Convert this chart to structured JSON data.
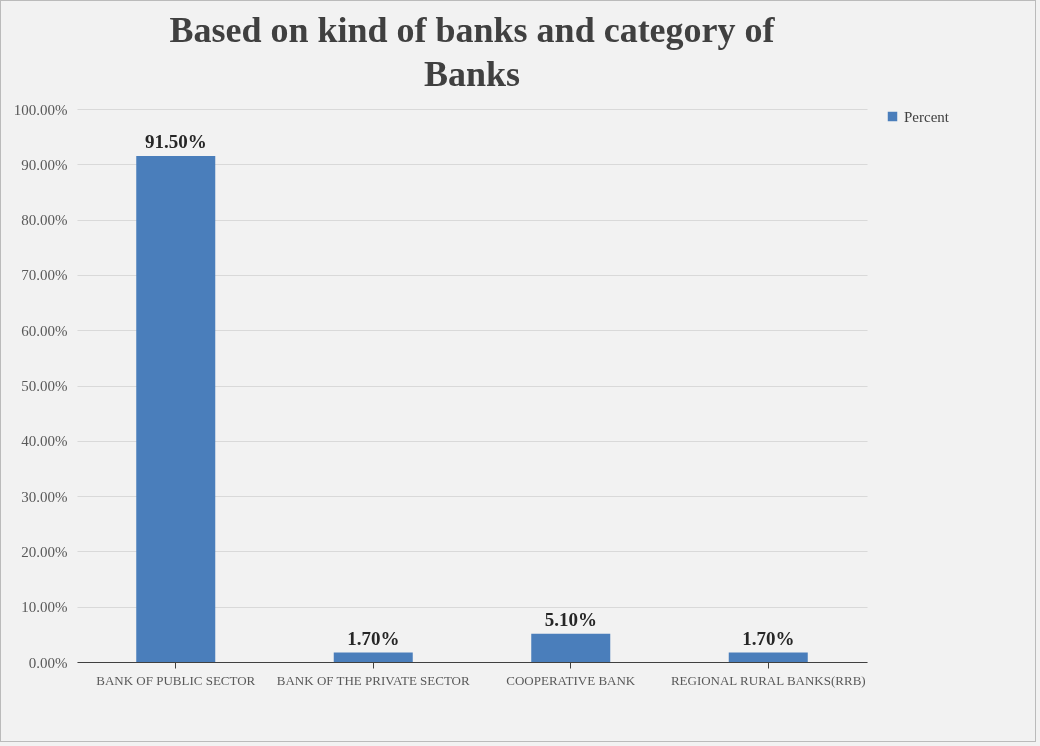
{
  "chart_data": {
    "type": "bar",
    "title": "Based on kind of banks and category of Banks",
    "categories": [
      "BANK OF PUBLIC SECTOR",
      "BANK OF THE PRIVATE SECTOR",
      "COOPERATIVE BANK",
      "REGIONAL RURAL BANKS(RRB)"
    ],
    "series": [
      {
        "name": "Percent",
        "color": "#4a7ebb",
        "values": [
          91.5,
          1.7,
          5.1,
          1.7
        ],
        "value_labels": [
          "91.50%",
          "1.70%",
          "5.10%",
          "1.70%"
        ]
      }
    ],
    "ylim": [
      0,
      100
    ],
    "yticks": [
      {
        "value": 0,
        "label": "0.00%"
      },
      {
        "value": 10,
        "label": "10.00%"
      },
      {
        "value": 20,
        "label": "20.00%"
      },
      {
        "value": 30,
        "label": "30.00%"
      },
      {
        "value": 40,
        "label": "40.00%"
      },
      {
        "value": 50,
        "label": "50.00%"
      },
      {
        "value": 60,
        "label": "60.00%"
      },
      {
        "value": 70,
        "label": "70.00%"
      },
      {
        "value": 80,
        "label": "80.00%"
      },
      {
        "value": 90,
        "label": "90.00%"
      },
      {
        "value": 100,
        "label": "100.00%"
      }
    ],
    "grid": "y",
    "legend": "right"
  }
}
